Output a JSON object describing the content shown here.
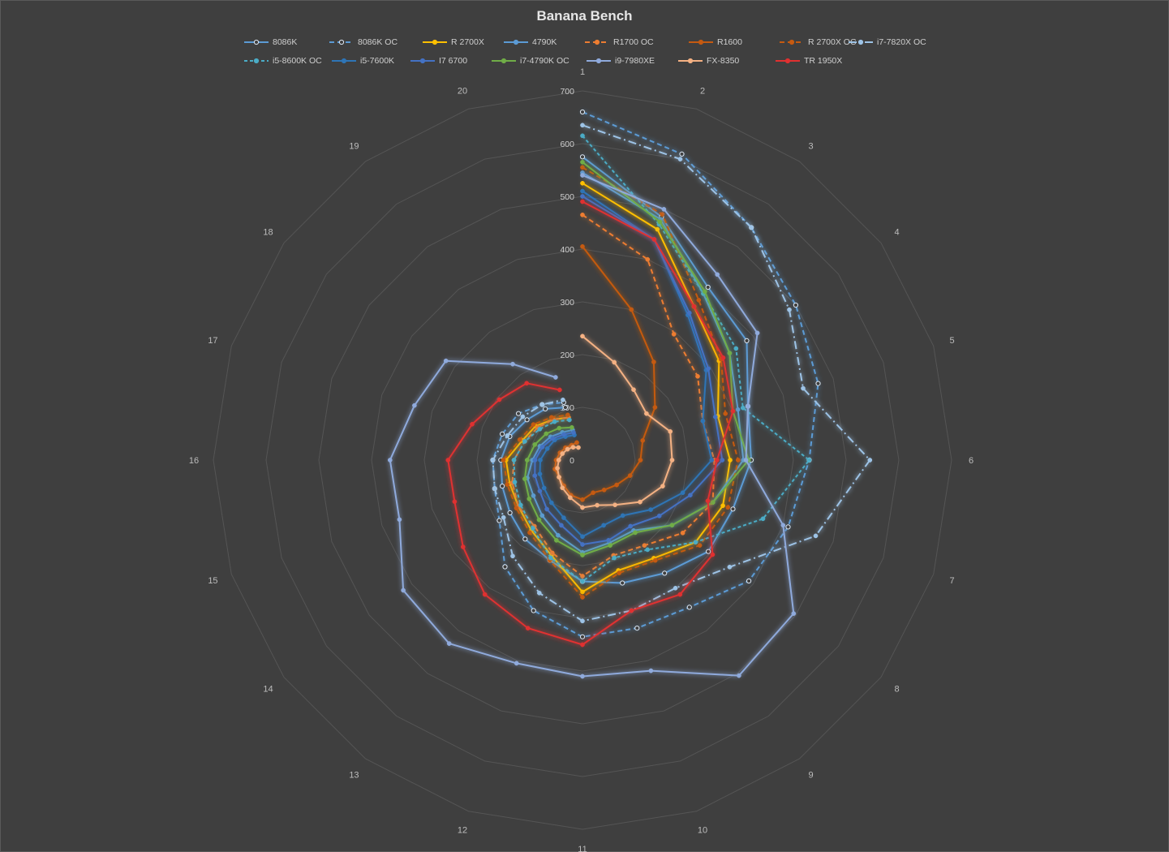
{
  "chart_data": {
    "type": "radar",
    "title": "Banana Bench",
    "categories": [
      "1",
      "2",
      "3",
      "4",
      "5",
      "6",
      "7",
      "8",
      "9",
      "10",
      "11",
      "12",
      "13",
      "14",
      "15",
      "16",
      "17",
      "18",
      "19",
      "20"
    ],
    "rlim": [
      0,
      700
    ],
    "ticks": [
      "0",
      "100",
      "200",
      "300",
      "400",
      "500",
      "600",
      "700"
    ],
    "tick_values": [
      0,
      100,
      200,
      300,
      400,
      500,
      600,
      700
    ],
    "grid": true,
    "legend_position": "top",
    "series": [
      {
        "name": "8086K",
        "color": "#5b9bd5",
        "dash": "",
        "marker": "open",
        "values": [
          575,
          485,
          405,
          385,
          330,
          320,
          300,
          295,
          265,
          245,
          230,
          200,
          185,
          170,
          160,
          155,
          145,
          130,
          120,
          105
        ]
      },
      {
        "name": "8086K OC",
        "color": "#5b9bd5",
        "dash": "6,4",
        "marker": "open",
        "values": [
          660,
          610,
          545,
          500,
          470,
          430,
          410,
          390,
          345,
          335,
          335,
          300,
          250,
          195,
          175,
          170,
          160,
          150,
          130,
          115
        ]
      },
      {
        "name": "R 2700X",
        "color": "#ffc000",
        "dash": "",
        "marker": "dot",
        "values": [
          525,
          460,
          360,
          320,
          270,
          280,
          280,
          265,
          230,
          220,
          250,
          190,
          165,
          150,
          145,
          145,
          120,
          110,
          95,
          85
        ]
      },
      {
        "name": "4790K",
        "color": "#5b9bd5",
        "dash": "",
        "marker": "dot",
        "values": [
          545,
          480,
          390,
          345,
          310,
          305,
          260,
          210,
          165,
          165,
          175,
          150,
          130,
          115,
          110,
          95,
          85,
          75,
          65,
          60
        ]
      },
      {
        "name": "R1700 OC",
        "color": "#ed7d31",
        "dash": "6,4",
        "marker": "dot",
        "values": [
          465,
          400,
          295,
          270,
          240,
          250,
          260,
          235,
          200,
          190,
          220,
          185,
          155,
          150,
          140,
          130,
          115,
          105,
          95,
          85
        ]
      },
      {
        "name": "R1600",
        "color": "#c55a11",
        "dash": "",
        "marker": "dot",
        "values": [
          405,
          300,
          230,
          170,
          120,
          110,
          95,
          80,
          70,
          65,
          75,
          70,
          60,
          55,
          55,
          50,
          45,
          40,
          35,
          35
        ]
      },
      {
        "name": "R 2700X OC",
        "color": "#c55a11",
        "dash": "6,4",
        "marker": "dot",
        "values": [
          555,
          490,
          375,
          325,
          285,
          295,
          290,
          275,
          235,
          225,
          260,
          200,
          170,
          155,
          150,
          150,
          125,
          115,
          100,
          90
        ]
      },
      {
        "name": "i7-7820X OC",
        "color": "#9dc3e6",
        "dash": "10,4,2,4",
        "marker": "dot",
        "values": [
          635,
          600,
          545,
          485,
          440,
          545,
          465,
          345,
          300,
          300,
          305,
          265,
          225,
          185,
          175,
          170,
          150,
          140,
          130,
          120
        ]
      },
      {
        "name": "i5-8600K OC",
        "color": "#4bacc6",
        "dash": "4,3",
        "marker": "dot",
        "values": [
          615,
          470,
          390,
          360,
          320,
          430,
          360,
          265,
          210,
          195,
          230,
          195,
          160,
          145,
          135,
          130,
          115,
          100,
          90,
          80
        ]
      },
      {
        "name": "i5-7600K",
        "color": "#2e75b6",
        "dash": "",
        "marker": "dot",
        "values": [
          510,
          440,
          340,
          290,
          240,
          245,
          200,
          160,
          130,
          130,
          145,
          115,
          100,
          90,
          85,
          80,
          70,
          65,
          55,
          50
        ]
      },
      {
        "name": "I7 6700",
        "color": "#4472c4",
        "dash": "",
        "marker": "dot",
        "values": [
          500,
          440,
          345,
          295,
          265,
          265,
          215,
          180,
          155,
          160,
          160,
          130,
          115,
          100,
          95,
          90,
          80,
          70,
          60,
          55
        ]
      },
      {
        "name": "i7-4790K OC",
        "color": "#70ad47",
        "dash": "",
        "marker": "dot",
        "values": [
          565,
          475,
          395,
          345,
          300,
          315,
          260,
          210,
          170,
          170,
          180,
          160,
          140,
          125,
          115,
          105,
          95,
          85,
          75,
          65
        ]
      },
      {
        "name": "i9-7980XE",
        "color": "#8faadc",
        "dash": "",
        "marker": "dot",
        "values": [
          540,
          500,
          435,
          410,
          330,
          310,
          400,
          495,
          505,
          420,
          410,
          405,
          430,
          420,
          365,
          365,
          335,
          320,
          225,
          165
        ]
      },
      {
        "name": "FX-8350",
        "color": "#f4b183",
        "dash": "",
        "marker": "dot",
        "values": [
          235,
          195,
          165,
          150,
          175,
          170,
          160,
          135,
          105,
          90,
          90,
          75,
          65,
          55,
          50,
          45,
          40,
          35,
          30,
          25
        ]
      },
      {
        "name": "TR 1950X",
        "color": "#e03030",
        "dash": "",
        "marker": "dot",
        "values": [
          490,
          440,
          360,
          330,
          300,
          255,
          250,
          305,
          315,
          300,
          350,
          335,
          315,
          280,
          255,
          255,
          220,
          195,
          180,
          140
        ]
      }
    ]
  }
}
